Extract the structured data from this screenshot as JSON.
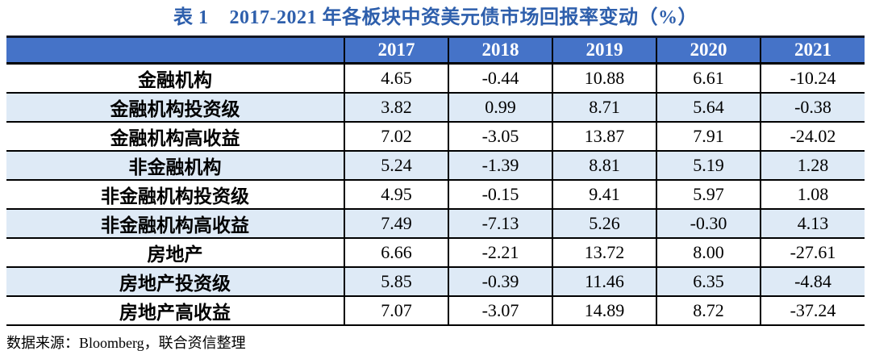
{
  "title": {
    "label": "表 1",
    "text": "2017-2021 年各板块中资美元债市场回报率变动（%）"
  },
  "table": {
    "columns": [
      "",
      "2017",
      "2018",
      "2019",
      "2020",
      "2021"
    ],
    "rows": [
      {
        "label": "金融机构",
        "values": [
          "4.65",
          "-0.44",
          "10.88",
          "6.61",
          "-10.24"
        ]
      },
      {
        "label": "金融机构投资级",
        "values": [
          "3.82",
          "0.99",
          "8.71",
          "5.64",
          "-0.38"
        ]
      },
      {
        "label": "金融机构高收益",
        "values": [
          "7.02",
          "-3.05",
          "13.87",
          "7.91",
          "-24.02"
        ]
      },
      {
        "label": "非金融机构",
        "values": [
          "5.24",
          "-1.39",
          "8.81",
          "5.19",
          "1.28"
        ]
      },
      {
        "label": "非金融机构投资级",
        "values": [
          "4.95",
          "-0.15",
          "9.41",
          "5.97",
          "1.08"
        ]
      },
      {
        "label": "非金融机构高收益",
        "values": [
          "7.49",
          "-7.13",
          "5.26",
          "-0.30",
          "4.13"
        ]
      },
      {
        "label": "房地产",
        "values": [
          "6.66",
          "-2.21",
          "13.72",
          "8.00",
          "-27.61"
        ]
      },
      {
        "label": "房地产投资级",
        "values": [
          "5.85",
          "-0.39",
          "11.46",
          "6.35",
          "-4.84"
        ]
      },
      {
        "label": "房地产高收益",
        "values": [
          "7.07",
          "-3.07",
          "14.89",
          "8.72",
          "-37.24"
        ]
      }
    ]
  },
  "source": "数据来源：Bloomberg，联合资信整理",
  "colors": {
    "header_bg": "#4573C8",
    "header_text": "#FFFFFF",
    "stripe_bg": "#DEEAF6",
    "title_text": "#2E5FAC",
    "border": "#000000"
  }
}
